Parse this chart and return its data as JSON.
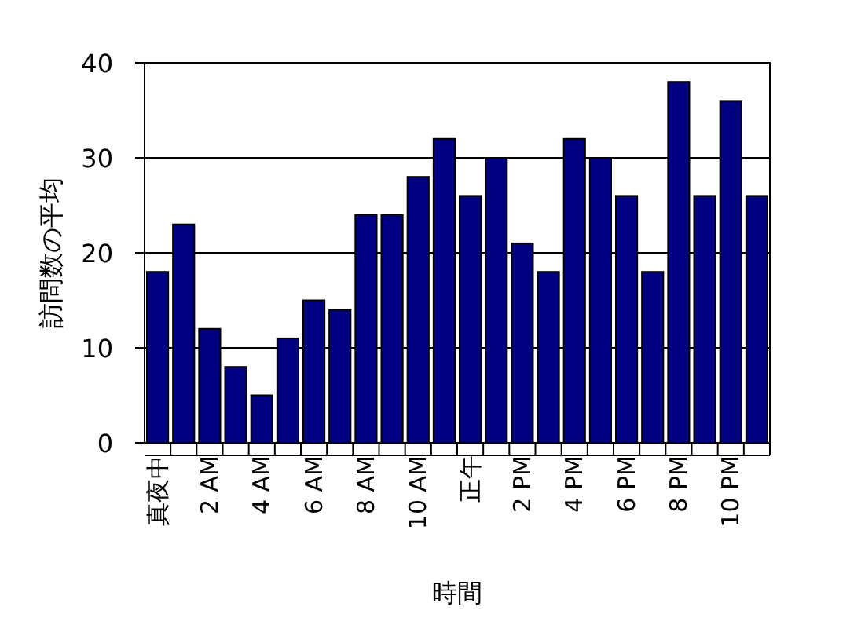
{
  "chart_data": {
    "type": "bar",
    "xlabel": "時間",
    "ylabel": "訪問数の平均",
    "categories": [
      "真夜中",
      null,
      "2 AM",
      null,
      "4 AM",
      null,
      "6 AM",
      null,
      "8 AM",
      null,
      "10 AM",
      null,
      "正午",
      null,
      "2 PM",
      null,
      "4 PM",
      null,
      "6 PM",
      null,
      "8 PM",
      null,
      "10 PM",
      null
    ],
    "values": [
      18,
      23,
      12,
      8,
      5,
      11,
      15,
      14,
      24,
      24,
      28,
      32,
      26,
      30,
      21,
      18,
      32,
      30,
      26,
      18,
      38,
      26,
      36,
      26
    ],
    "color": "#000080",
    "ylim": [
      0,
      40
    ],
    "yticks": [
      0,
      10,
      20,
      30,
      40
    ],
    "grid": "y"
  }
}
